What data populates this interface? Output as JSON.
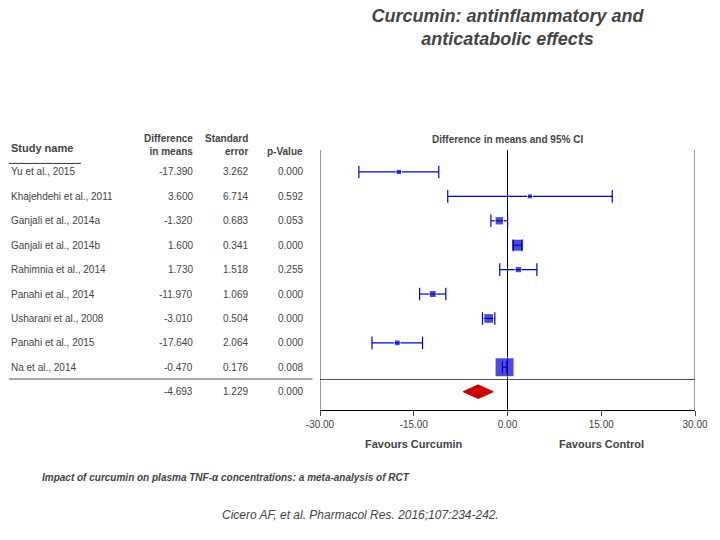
{
  "chart_data": {
    "type": "forest",
    "title": "Curcumin: antinflammatory and\nanticatabolic effects",
    "subtitle": "Impact of curcumin on plasma TNF-α concentrations: a meta-analysis of RCT",
    "xlabel": "Difference in means and 95% CI",
    "table_headers": [
      "Study name",
      "Difference\nin means",
      "Standard\nerror",
      "p-Value"
    ],
    "annotations": [
      {
        "text": "Favours Curcumin",
        "x": -15
      },
      {
        "text": "Favours Control",
        "x": 15
      },
      {
        "text": "Cicero AF, et al. Pharmacol Res. 2016;107:234-242."
      }
    ],
    "categories": [
      "Yu et al., 2015",
      "Khajehdehi et al., 2011",
      "Ganjali et al., 2014a",
      "Ganjali et al., 2014b",
      "Rahimnia et al., 2014",
      "Panahi et al., 2014",
      "Usharani et al., 2008",
      "Panahi et al., 2015",
      "Na et al., 2014"
    ],
    "values": [
      -17.39,
      3.6,
      -1.32,
      1.6,
      1.73,
      -11.97,
      -3.01,
      -17.64,
      -0.47
    ],
    "value_labels": [
      "-17.390",
      "3.600",
      "-1.320",
      "1.600",
      "1.730",
      "-11.970",
      "-3.010",
      "-17.640",
      "-0.470"
    ],
    "std_errors": [
      3.262,
      6.714,
      0.683,
      0.341,
      1.518,
      1.069,
      0.504,
      2.064,
      0.176
    ],
    "std_error_labels": [
      "3.262",
      "6.714",
      "0.683",
      "0.341",
      "1.518",
      "1.069",
      "0.504",
      "2.064",
      "0.176"
    ],
    "p_values": [
      0.0,
      0.592,
      0.053,
      0.0,
      0.255,
      0.0,
      0.0,
      0.0,
      0.008
    ],
    "p_value_labels": [
      "0.000",
      "0.592",
      "0.053",
      "0.000",
      "0.255",
      "0.000",
      "0.000",
      "0.000",
      "0.008"
    ],
    "ci_low": [
      -23.78352,
      -9.55944,
      -2.65868,
      0.93164,
      -1.24528,
      -14.06524,
      -3.99784,
      -21.68544,
      -0.81496
    ],
    "ci_high": [
      -10.99648,
      16.75944,
      0.01868,
      2.26836,
      4.70528,
      -9.87476,
      -2.02216,
      -13.59456,
      -0.12504
    ],
    "color": "#0000CC",
    "overall": {
      "value": -4.693,
      "value_label": "-4.693",
      "std_error": 1.229,
      "std_error_label": "1.229",
      "p_value": 0.0,
      "p_value_label": "0.000",
      "ci_low": -7.10184,
      "ci_high": -2.28416,
      "color": "#CC0000"
    },
    "xlim": [
      -30,
      30
    ],
    "xticks": [
      {
        "value": -30,
        "label": "-30.00"
      },
      {
        "value": -15,
        "label": "-15.00"
      },
      {
        "value": 0,
        "label": "0.00"
      },
      {
        "value": 15,
        "label": "15.00"
      },
      {
        "value": 30,
        "label": "30.00"
      }
    ],
    "grid": false
  }
}
